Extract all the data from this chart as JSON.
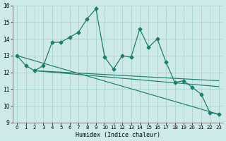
{
  "xlabel": "Humidex (Indice chaleur)",
  "xlim": [
    -0.5,
    23.5
  ],
  "ylim": [
    9,
    16
  ],
  "xticks": [
    0,
    1,
    2,
    3,
    4,
    5,
    6,
    7,
    8,
    9,
    10,
    11,
    12,
    13,
    14,
    15,
    16,
    17,
    18,
    19,
    20,
    21,
    22,
    23
  ],
  "yticks": [
    9,
    10,
    11,
    12,
    13,
    14,
    15,
    16
  ],
  "bg_color": "#ceeae8",
  "line_color": "#1e7b6e",
  "series_main": {
    "x": [
      0,
      1,
      2,
      3,
      4,
      5,
      6,
      7,
      8,
      9,
      10,
      11,
      12,
      13,
      14,
      15,
      16,
      17,
      18,
      19,
      20,
      21,
      22,
      23
    ],
    "y": [
      13.0,
      12.4,
      12.1,
      12.4,
      13.8,
      13.8,
      14.1,
      14.4,
      15.2,
      15.8,
      12.9,
      12.2,
      13.0,
      12.9,
      14.6,
      13.5,
      14.0,
      12.6,
      11.4,
      11.5,
      11.1,
      10.7,
      9.6,
      9.5
    ]
  },
  "series_smooth": [
    {
      "x": [
        2,
        23
      ],
      "y": [
        12.1,
        11.5
      ]
    },
    {
      "x": [
        2,
        23
      ],
      "y": [
        12.1,
        11.15
      ]
    },
    {
      "x": [
        0,
        23
      ],
      "y": [
        13.0,
        9.5
      ]
    }
  ]
}
